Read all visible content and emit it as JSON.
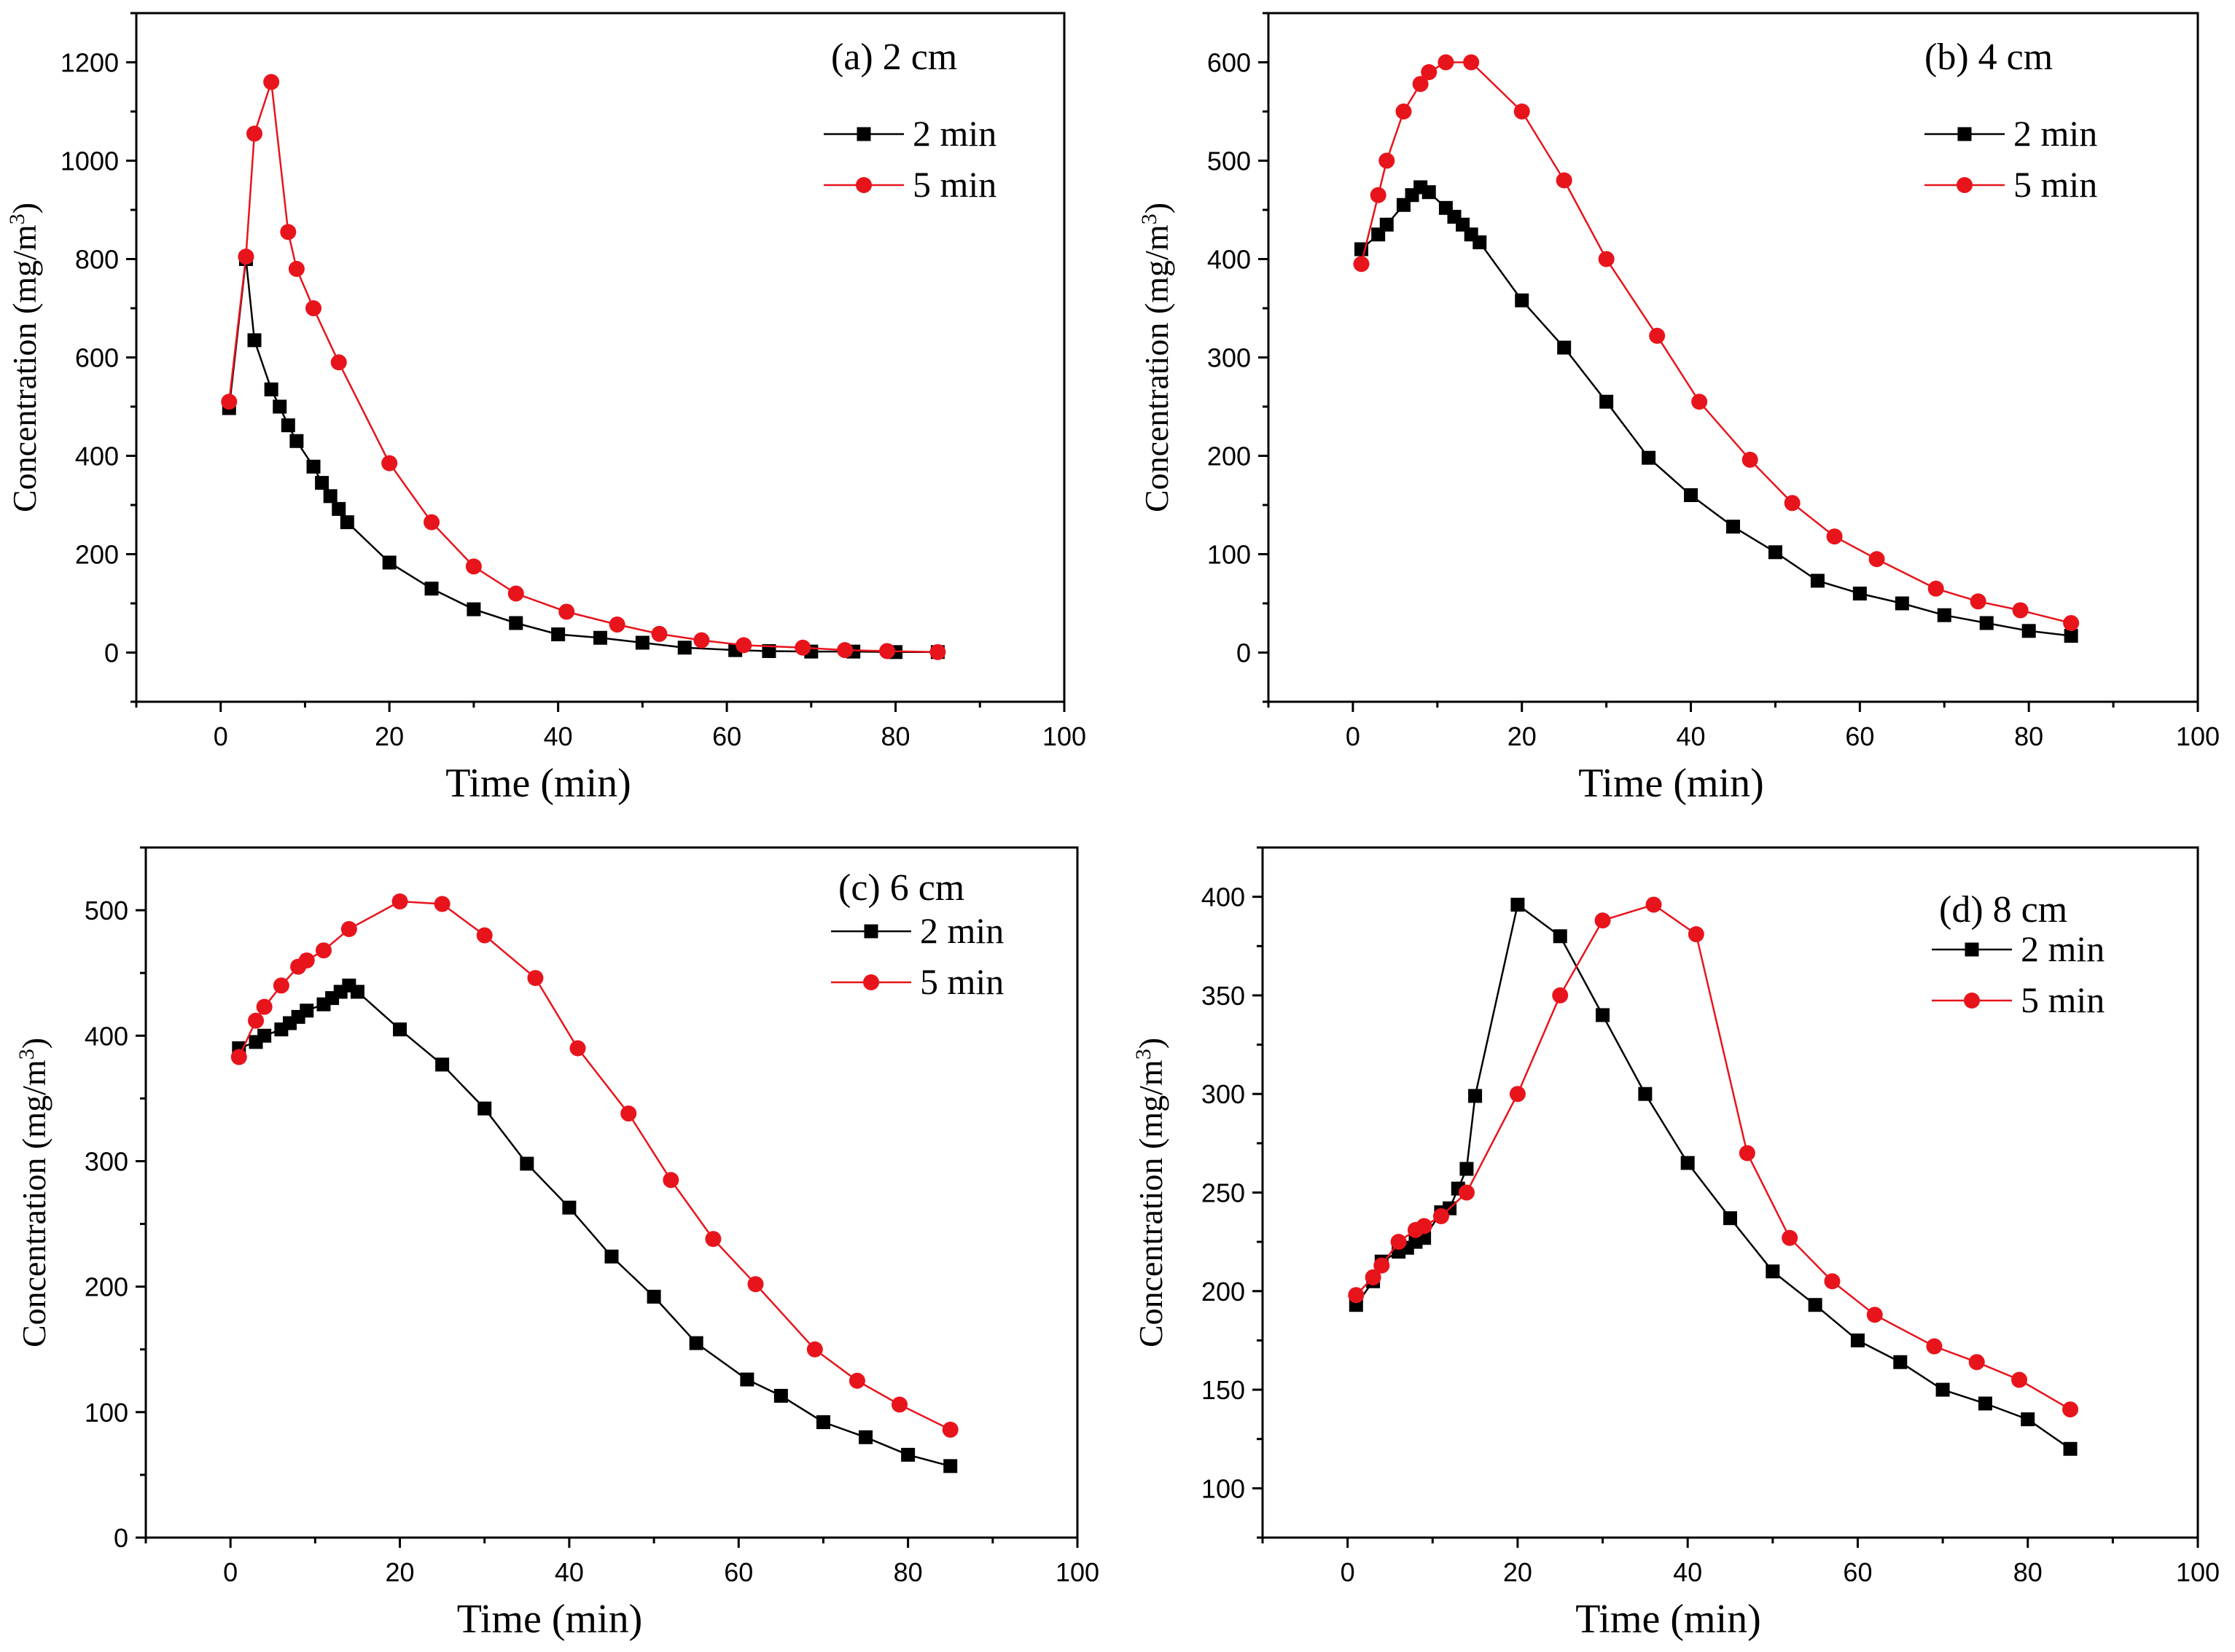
{
  "colors": {
    "series_2min": "#000000",
    "series_5min": "#e8141c",
    "line_5min": "#e8141c",
    "axis": "#000000"
  },
  "markers": {
    "series_2min": "square",
    "series_5min": "circle"
  },
  "chart_data": [
    {
      "type": "line",
      "title": "(a) 2 cm",
      "xlabel": "Time (min)",
      "ylabel": "Concentration (mg/m3)",
      "xlim": [
        -10,
        100
      ],
      "ylim": [
        -100,
        1300
      ],
      "xticks": [
        0,
        20,
        40,
        60,
        80,
        100
      ],
      "yticks": [
        0,
        200,
        400,
        600,
        800,
        1000,
        1200
      ],
      "legend": "top-right",
      "series": [
        {
          "name": "2 min",
          "points": [
            [
              1,
              497
            ],
            [
              3,
              800
            ],
            [
              4,
              635
            ],
            [
              6,
              535
            ],
            [
              7,
              500
            ],
            [
              8,
              462
            ],
            [
              9,
              430
            ],
            [
              11,
              378
            ],
            [
              12,
              345
            ],
            [
              13,
              318
            ],
            [
              14,
              292
            ],
            [
              15,
              265
            ],
            [
              20,
              183
            ],
            [
              25,
              130
            ],
            [
              30,
              88
            ],
            [
              35,
              60
            ],
            [
              40,
              37
            ],
            [
              45,
              30
            ],
            [
              50,
              20
            ],
            [
              55,
              10
            ],
            [
              61,
              5
            ],
            [
              65,
              3
            ],
            [
              70,
              2
            ],
            [
              75,
              2
            ],
            [
              80,
              1
            ],
            [
              85,
              1
            ]
          ]
        },
        {
          "name": "5 min",
          "points": [
            [
              1,
              510
            ],
            [
              3,
              805
            ],
            [
              4,
              1055
            ],
            [
              6,
              1160
            ],
            [
              8,
              855
            ],
            [
              9,
              780
            ],
            [
              11,
              700
            ],
            [
              14,
              590
            ],
            [
              20,
              385
            ],
            [
              25,
              265
            ],
            [
              30,
              175
            ],
            [
              35,
              120
            ],
            [
              41,
              83
            ],
            [
              47,
              57
            ],
            [
              52,
              38
            ],
            [
              57,
              25
            ],
            [
              62,
              15
            ],
            [
              69,
              10
            ],
            [
              74,
              5
            ],
            [
              79,
              3
            ],
            [
              85,
              1
            ]
          ]
        }
      ]
    },
    {
      "type": "line",
      "title": "(b) 4 cm",
      "xlabel": "Time (min)",
      "ylabel": "Concentration (mg/m3)",
      "xlim": [
        -10,
        100
      ],
      "ylim": [
        -50,
        650
      ],
      "xticks": [
        0,
        20,
        40,
        60,
        80,
        100
      ],
      "yticks": [
        0,
        100,
        200,
        300,
        400,
        500,
        600
      ],
      "legend": "top-right",
      "series": [
        {
          "name": "2 min",
          "points": [
            [
              1,
              410
            ],
            [
              3,
              425
            ],
            [
              4,
              435
            ],
            [
              6,
              455
            ],
            [
              7,
              465
            ],
            [
              8,
              473
            ],
            [
              9,
              468
            ],
            [
              11,
              452
            ],
            [
              12,
              443
            ],
            [
              13,
              435
            ],
            [
              14,
              425
            ],
            [
              15,
              417
            ],
            [
              20,
              358
            ],
            [
              25,
              310
            ],
            [
              30,
              255
            ],
            [
              35,
              198
            ],
            [
              40,
              160
            ],
            [
              45,
              128
            ],
            [
              50,
              102
            ],
            [
              55,
              73
            ],
            [
              60,
              60
            ],
            [
              65,
              50
            ],
            [
              70,
              38
            ],
            [
              75,
              30
            ],
            [
              80,
              22
            ],
            [
              85,
              17
            ]
          ]
        },
        {
          "name": "5 min",
          "points": [
            [
              1,
              395
            ],
            [
              3,
              465
            ],
            [
              4,
              500
            ],
            [
              6,
              550
            ],
            [
              8,
              578
            ],
            [
              9,
              590
            ],
            [
              11,
              600
            ],
            [
              14,
              600
            ],
            [
              20,
              550
            ],
            [
              25,
              480
            ],
            [
              30,
              400
            ],
            [
              36,
              322
            ],
            [
              41,
              255
            ],
            [
              47,
              196
            ],
            [
              52,
              152
            ],
            [
              57,
              118
            ],
            [
              62,
              95
            ],
            [
              69,
              65
            ],
            [
              74,
              52
            ],
            [
              79,
              43
            ],
            [
              85,
              30
            ]
          ]
        }
      ]
    },
    {
      "type": "line",
      "title": "(c) 6 cm",
      "xlabel": "Time (min)",
      "ylabel": "Concentration (mg/m3)",
      "xlim": [
        -10,
        100
      ],
      "ylim": [
        0,
        550
      ],
      "xticks": [
        0,
        20,
        40,
        60,
        80,
        100
      ],
      "yticks": [
        0,
        100,
        200,
        300,
        400,
        500
      ],
      "legend": "top-right",
      "series": [
        {
          "name": "2 min",
          "points": [
            [
              1,
              390
            ],
            [
              3,
              395
            ],
            [
              4,
              400
            ],
            [
              6,
              405
            ],
            [
              7,
              410
            ],
            [
              8,
              415
            ],
            [
              9,
              420
            ],
            [
              11,
              425
            ],
            [
              12,
              430
            ],
            [
              13,
              435
            ],
            [
              14,
              440
            ],
            [
              15,
              435
            ],
            [
              20,
              405
            ],
            [
              25,
              377
            ],
            [
              30,
              342
            ],
            [
              35,
              298
            ],
            [
              40,
              263
            ],
            [
              45,
              224
            ],
            [
              50,
              192
            ],
            [
              55,
              155
            ],
            [
              61,
              126
            ],
            [
              65,
              113
            ],
            [
              70,
              92
            ],
            [
              75,
              80
            ],
            [
              80,
              66
            ],
            [
              85,
              57
            ]
          ]
        },
        {
          "name": "5 min",
          "points": [
            [
              1,
              383
            ],
            [
              3,
              412
            ],
            [
              4,
              423
            ],
            [
              6,
              440
            ],
            [
              8,
              455
            ],
            [
              9,
              460
            ],
            [
              11,
              468
            ],
            [
              14,
              485
            ],
            [
              20,
              507
            ],
            [
              25,
              505
            ],
            [
              30,
              480
            ],
            [
              36,
              446
            ],
            [
              41,
              390
            ],
            [
              47,
              338
            ],
            [
              52,
              285
            ],
            [
              57,
              238
            ],
            [
              62,
              202
            ],
            [
              69,
              150
            ],
            [
              74,
              125
            ],
            [
              79,
              106
            ],
            [
              85,
              86
            ]
          ]
        }
      ]
    },
    {
      "type": "line",
      "title": "(d) 8 cm",
      "xlabel": "Time (min)",
      "ylabel": "Concentration (mg/m3)",
      "xlim": [
        -10,
        100
      ],
      "ylim": [
        75,
        425
      ],
      "xticks": [
        0,
        20,
        40,
        60,
        80,
        100
      ],
      "yticks": [
        100,
        150,
        200,
        250,
        300,
        350,
        400
      ],
      "legend": "top-right",
      "series": [
        {
          "name": "2 min",
          "points": [
            [
              1,
              193
            ],
            [
              3,
              205
            ],
            [
              4,
              215
            ],
            [
              6,
              220
            ],
            [
              7,
              222
            ],
            [
              8,
              225
            ],
            [
              9,
              227
            ],
            [
              11,
              240
            ],
            [
              12,
              242
            ],
            [
              13,
              252
            ],
            [
              14,
              262
            ],
            [
              15,
              299
            ],
            [
              20,
              396
            ],
            [
              25,
              380
            ],
            [
              30,
              340
            ],
            [
              35,
              300
            ],
            [
              40,
              265
            ],
            [
              45,
              237
            ],
            [
              50,
              210
            ],
            [
              55,
              193
            ],
            [
              60,
              175
            ],
            [
              65,
              164
            ],
            [
              70,
              150
            ],
            [
              75,
              143
            ],
            [
              80,
              135
            ],
            [
              85,
              120
            ]
          ]
        },
        {
          "name": "5 min",
          "points": [
            [
              1,
              198
            ],
            [
              3,
              207
            ],
            [
              4,
              213
            ],
            [
              6,
              225
            ],
            [
              8,
              231
            ],
            [
              9,
              233
            ],
            [
              11,
              238
            ],
            [
              14,
              250
            ],
            [
              20,
              300
            ],
            [
              25,
              350
            ],
            [
              30,
              388
            ],
            [
              36,
              396
            ],
            [
              41,
              381
            ],
            [
              47,
              270
            ],
            [
              52,
              227
            ],
            [
              57,
              205
            ],
            [
              62,
              188
            ],
            [
              69,
              172
            ],
            [
              74,
              164
            ],
            [
              79,
              155
            ],
            [
              85,
              140
            ]
          ]
        }
      ]
    }
  ]
}
